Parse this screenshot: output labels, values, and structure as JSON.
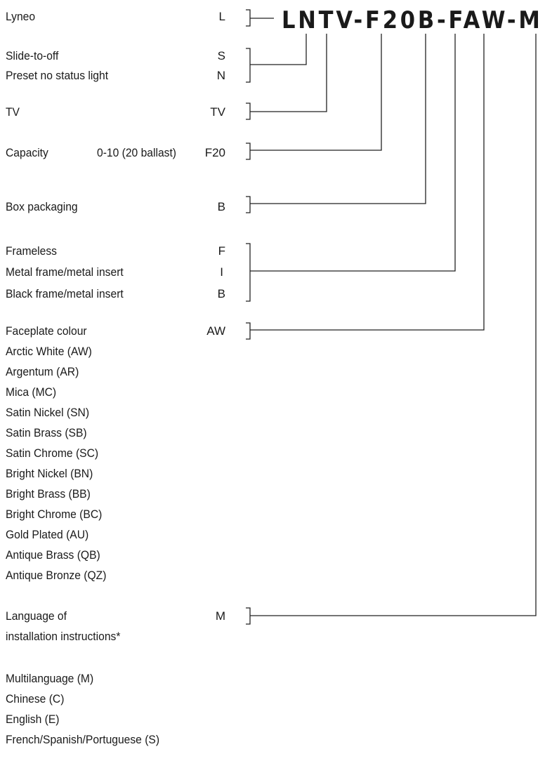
{
  "model_code": "LNTV-F20B-FAW-M",
  "rows": {
    "brand": {
      "label": "Lyneo",
      "code": "L"
    },
    "switch_off": {
      "label": "Slide-to-off",
      "code": "S"
    },
    "status_light": {
      "label": "Preset no status light",
      "code": "N"
    },
    "tv": {
      "label": "TV",
      "code": "TV"
    },
    "capacity": {
      "label": "Capacity",
      "spec": "0-10 (20 ballast)",
      "code": "F20"
    },
    "packaging": {
      "label": "Box packaging",
      "code": "B"
    },
    "frameless": {
      "label": "Frameless",
      "code": "F"
    },
    "metal_frame": {
      "label": "Metal frame/metal insert",
      "code": "I"
    },
    "black_frame": {
      "label": "Black frame/metal insert",
      "code": "B"
    },
    "faceplate": {
      "label": "Faceplate colour",
      "code": "AW"
    },
    "language_1": {
      "label": "Language of",
      "code": "M"
    },
    "language_2": {
      "label": "installation instructions*"
    }
  },
  "faceplate_colours": [
    "Arctic White (AW)",
    "Argentum (AR)",
    "Mica (MC)",
    "Satin Nickel (SN)",
    "Satin Brass (SB)",
    "Satin Chrome (SC)",
    "Bright Nickel (BN)",
    "Bright Brass (BB)",
    "Bright Chrome (BC)",
    "Gold Plated (AU)",
    "Antique Brass (QB)",
    "Antique Bronze (QZ)"
  ],
  "languages": [
    "Multilanguage (M)",
    "Chinese (C)",
    "English (E)",
    "French/Spanish/Portuguese (S)"
  ]
}
